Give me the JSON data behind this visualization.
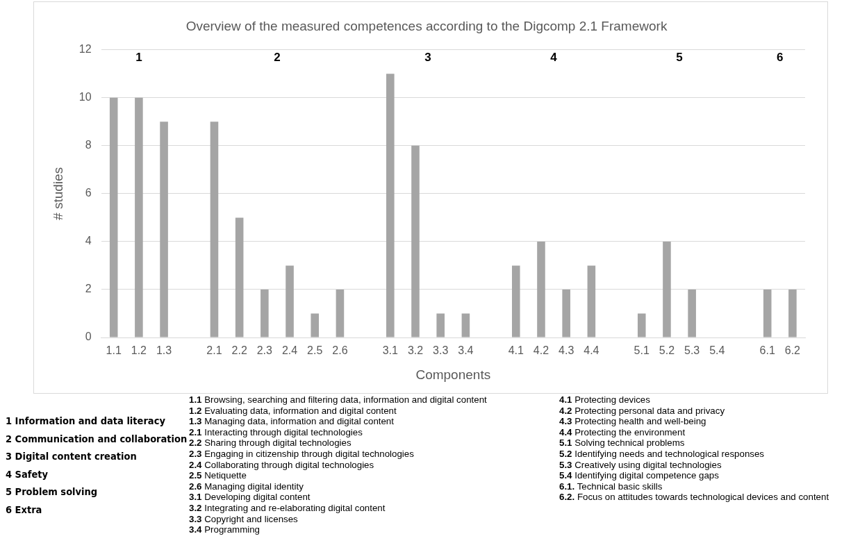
{
  "chart_data": {
    "type": "bar",
    "title": "Overview of the measured competences according to the Digcomp 2.1 Framework",
    "xlabel": "Components",
    "ylabel": "# studies",
    "categories": [
      "1.1",
      "1.2",
      "1.3",
      null,
      "2.1",
      "2.2",
      "2.3",
      "2.4",
      "2.5",
      "2.6",
      null,
      "3.1",
      "3.2",
      "3.3",
      "3.4",
      null,
      "4.1",
      "4.2",
      "4.3",
      "4.4",
      null,
      "5.1",
      "5.2",
      "5.3",
      "5.4",
      null,
      "6.1",
      "6.2"
    ],
    "values": [
      10,
      10,
      9,
      null,
      9,
      5,
      2,
      3,
      1,
      2,
      null,
      11,
      8,
      1,
      1,
      null,
      3,
      4,
      2,
      3,
      null,
      1,
      4,
      2,
      0,
      null,
      2,
      2
    ],
    "color": "#a5a5a5",
    "ylim": [
      0,
      12
    ],
    "yticks": [
      0,
      2,
      4,
      6,
      8,
      10,
      12
    ],
    "grid": "y",
    "legend": false,
    "annotations": [
      "1",
      "2",
      "3",
      "4",
      "5",
      "6",
      "1 Information and data literacy",
      "2 Communication and collaboration",
      "3 Digital content creation",
      "4 Safety",
      "5 Problem solving",
      "6 Extra",
      "1.1 Browsing, searching and filtering data, information and digital content",
      "1.2 Evaluating data, information and digital content",
      "1.3 Managing data, information and digital content",
      "2.1 Interacting through digital technologies",
      "2.2 Sharing through digital technologies",
      "2.3 Engaging in citizenship through digital technologies",
      "2.4 Collaborating through digital technologies",
      "2.5 Netiquette",
      "2.6 Managing digital identity",
      "3.1 Developing digital content",
      "3.2 Integrating and re-elaborating digital content",
      "3.3 Copyright and licenses",
      "3.4 Programming",
      "4.1 Protecting devices",
      "4.2 Protecting personal data and privacy",
      "4.3 Protecting health and well-being",
      "4.4 Protecting the environment",
      "5.1 Solving technical problems",
      "5.2 Identifying needs and technological responses",
      "5.3 Creatively using digital technologies",
      "5.4 Identifying digital competence gaps",
      "6.1. Technical basic skills",
      "6.2. Focus on attitudes towards technological devices and content"
    ]
  }
}
